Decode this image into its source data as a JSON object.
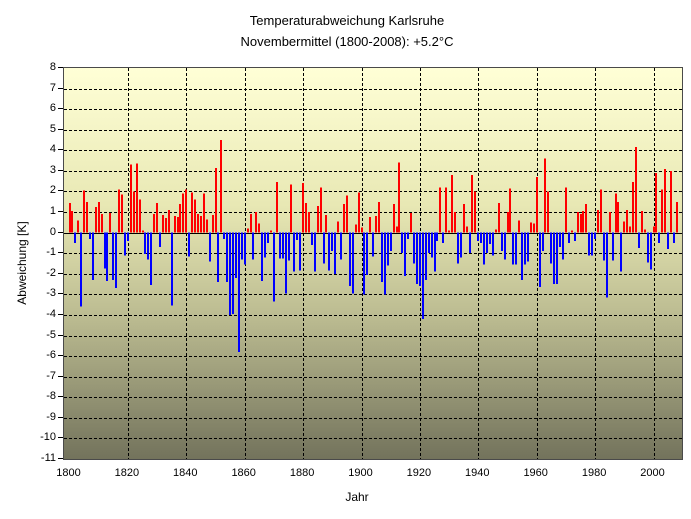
{
  "title": {
    "line1": "Temperaturabweichung Karlsruhe",
    "line2": "Novembermittel (1800-2008): +5.2°C"
  },
  "axes": {
    "y_label": "Abweichung [K]",
    "x_label": "Jahr",
    "y_ticks": [
      8,
      7,
      6,
      5,
      4,
      3,
      2,
      1,
      0,
      -1,
      -2,
      -3,
      -4,
      -5,
      -6,
      -7,
      -8,
      -9,
      -10,
      -11
    ],
    "x_ticks": [
      1800,
      1820,
      1840,
      1860,
      1880,
      1900,
      1920,
      1940,
      1960,
      1980,
      2000
    ]
  },
  "colors": {
    "positive_bar": "#ff0000",
    "negative_bar": "#0000ff",
    "plot_bg_top": "#ffffd6",
    "plot_bg_bottom": "#73735c",
    "gridline": "#000000",
    "frame": "#4a4a4a",
    "page_bg": "#ffffff"
  },
  "chart_data": {
    "type": "bar",
    "title": "Temperaturabweichung Karlsruhe — Novembermittel (1800-2008): +5.2°C",
    "xlabel": "Jahr",
    "ylabel": "Abweichung [K]",
    "ylim": [
      -11,
      8
    ],
    "xlim": [
      1798,
      2010
    ],
    "grid": "dashed horizontal every 1 K, dashed vertical every 20 years",
    "legend": "none",
    "series_note": "annual November temperature anomaly [K]; consecutive years from x_start to x_end; positive = red, negative = blue",
    "x_start": 1800,
    "x_end": 2008,
    "x_step": 1,
    "values": [
      1.45,
      1.05,
      -0.5,
      0.6,
      -3.6,
      2.05,
      1.5,
      -0.3,
      -2.3,
      1.25,
      1.5,
      0.9,
      -1.75,
      -2.35,
      0.95,
      -2.3,
      -2.7,
      2.1,
      1.85,
      -1.1,
      -0.4,
      3.3,
      2.0,
      3.35,
      1.6,
      0.1,
      -1.05,
      -1.3,
      -2.55,
      0.9,
      1.45,
      -0.7,
      0.85,
      0.7,
      1.1,
      -3.55,
      0.8,
      0.75,
      1.4,
      1.9,
      2.1,
      -1.15,
      1.95,
      1.6,
      0.9,
      0.8,
      1.9,
      0.65,
      -1.4,
      0.85,
      3.15,
      -2.4,
      4.5,
      -0.3,
      -2.4,
      -4.0,
      -3.95,
      -2.2,
      -5.8,
      -1.3,
      -1.55,
      0.2,
      0.9,
      -1.3,
      1.0,
      0.45,
      -2.35,
      -1.2,
      -0.5,
      0.1,
      -3.35,
      2.45,
      -1.25,
      -1.25,
      -2.95,
      -1.35,
      2.35,
      -1.9,
      -0.35,
      -1.85,
      2.4,
      1.45,
      1.0,
      -0.6,
      -1.9,
      1.3,
      2.2,
      -1.5,
      0.85,
      -1.85,
      -0.9,
      -2.0,
      0.55,
      -1.3,
      1.4,
      1.8,
      -2.6,
      -2.95,
      0.4,
      1.95,
      0.25,
      -3.0,
      -2.05,
      0.75,
      -1.15,
      0.8,
      1.5,
      -2.4,
      -3.0,
      -1.6,
      -0.9,
      1.4,
      0.3,
      3.4,
      -1.0,
      -2.1,
      -0.3,
      0.95,
      -1.5,
      -2.5,
      -2.6,
      -4.2,
      -2.3,
      -1.0,
      -1.2,
      -1.9,
      -0.4,
      2.2,
      -0.5,
      2.2,
      0.1,
      2.8,
      1.0,
      -1.5,
      -1.2,
      1.4,
      0.3,
      -1.0,
      2.8,
      2.0,
      -0.4,
      -0.5,
      -1.55,
      -1.0,
      -0.55,
      -1.1,
      0.15,
      1.45,
      -0.9,
      -1.3,
      1.0,
      2.15,
      -1.55,
      -1.55,
      0.6,
      -2.3,
      -1.55,
      -1.4,
      0.5,
      0.45,
      2.7,
      -2.65,
      -0.9,
      3.6,
      2.0,
      -1.5,
      -2.5,
      -2.5,
      -0.7,
      -1.3,
      2.2,
      -0.5,
      0.1,
      -0.4,
      1.0,
      0.9,
      1.05,
      1.4,
      -1.1,
      -1.1,
      -0.3,
      1.1,
      2.1,
      -1.35,
      -3.15,
      1.0,
      -1.35,
      1.9,
      1.5,
      -1.9,
      0.55,
      1.1,
      0.3,
      2.45,
      4.15,
      -0.75,
      1.05,
      0.15,
      -1.45,
      -1.8,
      0.3,
      2.9,
      -0.5,
      2.1,
      3.1,
      -0.8,
      3.0,
      -0.5,
      1.5
    ]
  }
}
